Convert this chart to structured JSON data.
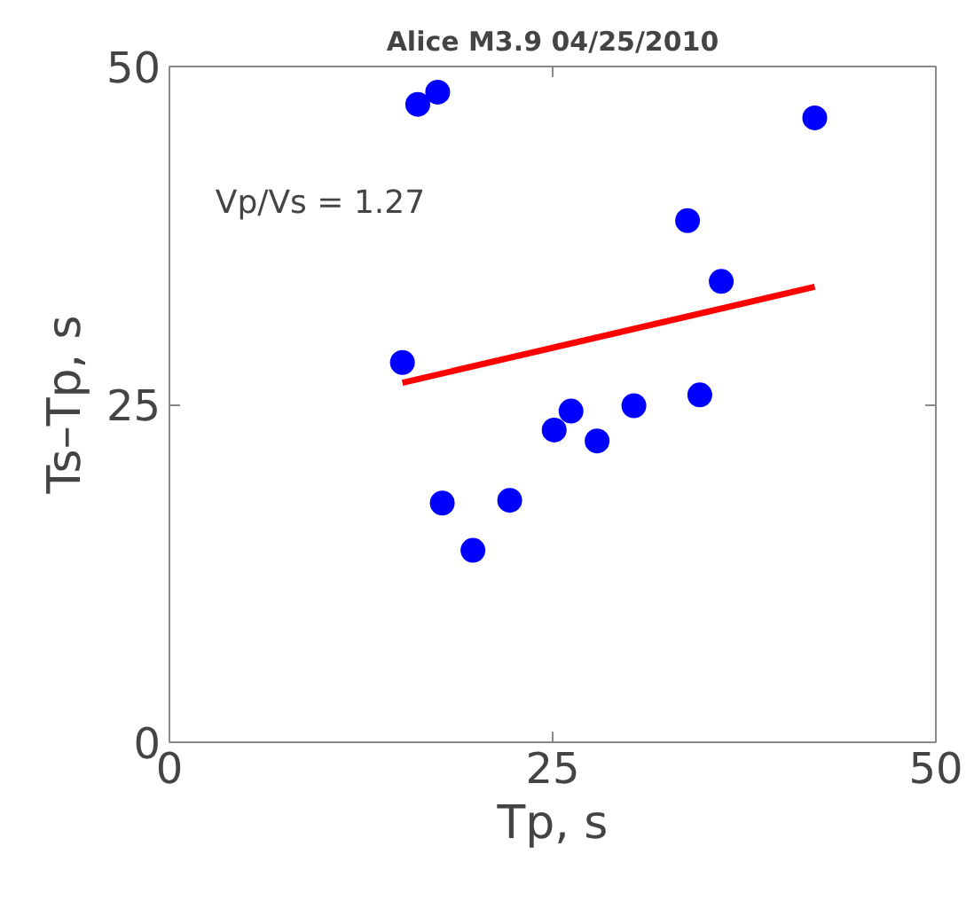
{
  "chart_data": {
    "type": "scatter",
    "title": "Alice M3.9 04/25/2010",
    "xlabel": "Tp, s",
    "ylabel": "Ts–Tp, s",
    "xlim": [
      0,
      50
    ],
    "ylim": [
      0,
      50
    ],
    "xticks": [
      0,
      25,
      50
    ],
    "yticks": [
      0,
      25,
      50
    ],
    "grid": false,
    "annotations": [
      "Vp/Vs = 1.27"
    ],
    "series": [
      {
        "marker": "circle",
        "color": "#0000ff",
        "x": [
          16.2,
          17.5,
          42.1,
          33.8,
          36.0,
          15.2,
          34.6,
          30.3,
          26.2,
          25.1,
          27.9,
          17.8,
          22.2,
          19.8
        ],
        "values": [
          47.2,
          48.1,
          46.2,
          38.6,
          34.1,
          28.1,
          25.7,
          24.9,
          24.5,
          23.1,
          22.3,
          17.7,
          17.9,
          14.2
        ]
      },
      {
        "type": "line",
        "marker": "none",
        "color": "#ff0000",
        "x": [
          15.2,
          42.1
        ],
        "values": [
          26.6,
          33.7
        ]
      }
    ]
  }
}
